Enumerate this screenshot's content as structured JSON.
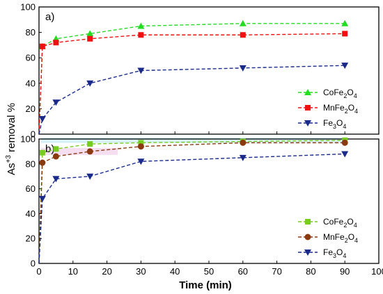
{
  "chart_data": [
    {
      "type": "line",
      "panel_label": "a)",
      "x": [
        0,
        1,
        5,
        15,
        30,
        60,
        90
      ],
      "xlim": [
        0,
        100
      ],
      "ylim": [
        0,
        100
      ],
      "yticks": [
        0,
        20,
        40,
        60,
        80,
        100
      ],
      "legend_position": "bottom-right",
      "series": [
        {
          "name": "CoFe2O4",
          "name_main": "CoFe",
          "name_sub1": "2",
          "name_mid": "O",
          "name_sub2": "4",
          "color": "#22dd22",
          "marker": "triangle-up",
          "values": [
            0,
            69,
            75,
            79,
            85,
            87,
            87
          ]
        },
        {
          "name": "MnFe2O4",
          "name_main": "MnFe",
          "name_sub1": "2",
          "name_mid": "O",
          "name_sub2": "4",
          "color": "#ee1111",
          "marker": "square",
          "values": [
            0,
            69,
            72,
            75,
            78,
            78,
            79
          ]
        },
        {
          "name": "Fe3O4",
          "name_main": "Fe",
          "name_sub1": "3",
          "name_mid": "O",
          "name_sub2": "4",
          "color": "#1a2a8a",
          "marker": "triangle-down",
          "values": [
            0,
            12,
            25,
            40,
            50,
            52,
            54
          ]
        }
      ]
    },
    {
      "type": "line",
      "panel_label": "b)",
      "x": [
        0,
        1,
        5,
        15,
        30,
        60,
        90
      ],
      "xlim": [
        0,
        100
      ],
      "ylim": [
        0,
        100
      ],
      "yticks": [
        0,
        20,
        40,
        60,
        80,
        100
      ],
      "xticks": [
        0,
        10,
        20,
        30,
        40,
        50,
        60,
        70,
        80,
        90,
        100
      ],
      "legend_position": "bottom-right",
      "series": [
        {
          "name": "CoFe2O4",
          "name_main": "CoFe",
          "name_sub1": "2",
          "name_mid": "O",
          "name_sub2": "4",
          "color": "#77cc22",
          "marker": "square",
          "values": [
            0,
            89,
            92,
            96,
            97,
            98,
            99
          ]
        },
        {
          "name": "MnFe2O4",
          "name_main": "MnFe",
          "name_sub1": "2",
          "name_mid": "O",
          "name_sub2": "4",
          "color": "#8b3a10",
          "marker": "circle",
          "values": [
            0,
            81,
            86,
            90,
            94,
            97,
            97
          ]
        },
        {
          "name": "Fe3O4",
          "name_main": "Fe",
          "name_sub1": "3",
          "name_mid": "O",
          "name_sub2": "4",
          "color": "#1a2a8a",
          "marker": "triangle-down",
          "values": [
            0,
            52,
            68,
            70,
            82,
            85,
            88
          ]
        }
      ]
    }
  ],
  "axes": {
    "xlabel": "Time (min)",
    "ylabel_main": "As",
    "ylabel_sup": "+3",
    "ylabel_rest": " removal %"
  }
}
